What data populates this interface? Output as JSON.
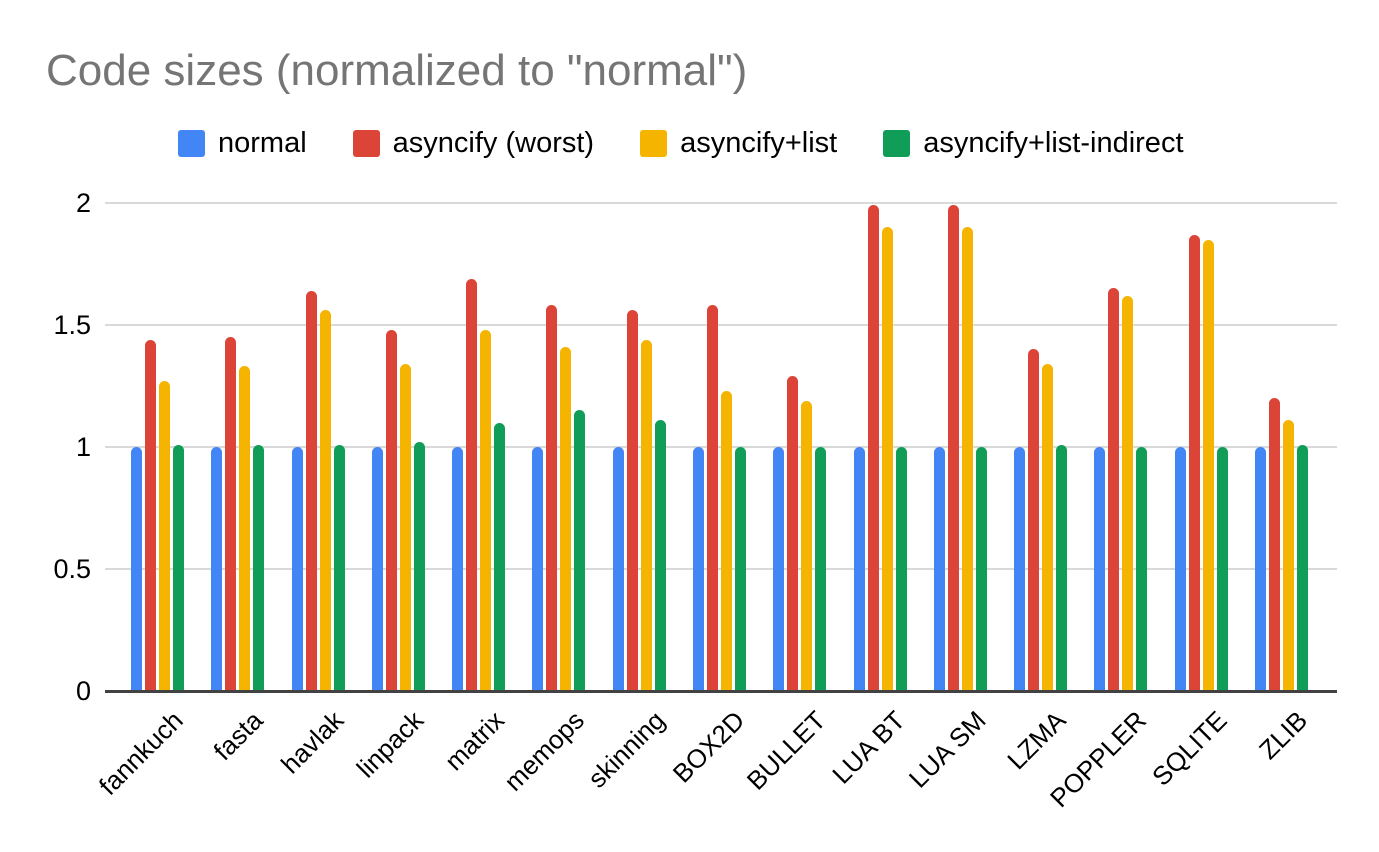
{
  "page": {
    "background": "#ffffff"
  },
  "chart": {
    "title": "Code sizes (normalized to \"normal\")",
    "title_color": "#757575"
  },
  "chart_data": {
    "type": "bar",
    "title": "Code sizes (normalized to \"normal\")",
    "xlabel": "",
    "ylabel": "",
    "grid": true,
    "legend_position": "top",
    "x_label_rotation": -45,
    "ylim": [
      0,
      2
    ],
    "y_ticks": [
      0,
      0.5,
      1,
      1.5,
      2
    ],
    "y_tick_labels": [
      "0",
      "0.5",
      "1",
      "1.5",
      "2"
    ],
    "categories": [
      "fannkuch",
      "fasta",
      "havlak",
      "linpack",
      "matrix",
      "memops",
      "skinning",
      "BOX2D",
      "BULLET",
      "LUA BT",
      "LUA SM",
      "LZMA",
      "POPPLER",
      "SQLITE",
      "ZLIB"
    ],
    "series": [
      {
        "name": "normal",
        "color": "#4285F4",
        "values": [
          1.0,
          1.0,
          1.0,
          1.0,
          1.0,
          1.0,
          1.0,
          1.0,
          1.0,
          1.0,
          1.0,
          1.0,
          1.0,
          1.0,
          1.0
        ]
      },
      {
        "name": "asyncify (worst)",
        "color": "#DB4437",
        "values": [
          1.44,
          1.45,
          1.64,
          1.48,
          1.69,
          1.58,
          1.56,
          1.58,
          1.29,
          1.99,
          1.99,
          1.4,
          1.65,
          1.87,
          1.2
        ]
      },
      {
        "name": "asyncify+list",
        "color": "#F4B400",
        "values": [
          1.27,
          1.33,
          1.56,
          1.34,
          1.48,
          1.41,
          1.44,
          1.23,
          1.19,
          1.9,
          1.9,
          1.34,
          1.62,
          1.85,
          1.11
        ]
      },
      {
        "name": "asyncify+list-indirect",
        "color": "#0F9D58",
        "values": [
          1.01,
          1.01,
          1.01,
          1.02,
          1.1,
          1.15,
          1.11,
          1.0,
          1.0,
          1.0,
          1.0,
          1.01,
          1.0,
          1.0,
          1.01
        ]
      }
    ],
    "gridline_color": "#d9d9d9",
    "axis_line_color": "#424242"
  }
}
